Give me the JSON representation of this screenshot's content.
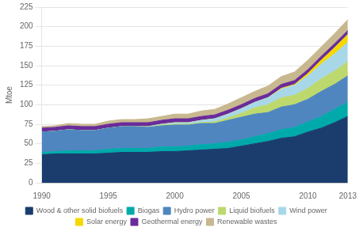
{
  "chart_data": {
    "type": "area",
    "stacked": true,
    "ylabel": "Mtoe",
    "x": [
      1990,
      1991,
      1992,
      1993,
      1994,
      1995,
      1996,
      1997,
      1998,
      1999,
      2000,
      2001,
      2002,
      2003,
      2004,
      2005,
      2006,
      2007,
      2008,
      2009,
      2010,
      2011,
      2012,
      2013
    ],
    "series": [
      {
        "name": "Wood & other solid biofuels",
        "color": "#1a3d6e",
        "values": [
          36,
          37,
          37,
          37,
          37,
          38,
          39,
          39,
          39,
          40,
          40,
          41,
          42,
          43,
          44,
          47,
          50,
          53,
          57,
          59,
          65,
          70,
          77,
          85
        ]
      },
      {
        "name": "Biogas",
        "color": "#00aaaa",
        "values": [
          3,
          3,
          4,
          4,
          4,
          5,
          5,
          5,
          5,
          6,
          6,
          6,
          7,
          7,
          8,
          8,
          9,
          10,
          11,
          12,
          13,
          15,
          17,
          18
        ]
      },
      {
        "name": "Hydro power",
        "color": "#4f86c0",
        "values": [
          26,
          26,
          27,
          26,
          26,
          27,
          28,
          28,
          27,
          27,
          28,
          27,
          27,
          26,
          28,
          29,
          29,
          27,
          29,
          29,
          29,
          32,
          32,
          34
        ]
      },
      {
        "name": "Liquid biofuels",
        "color": "#bdd96e",
        "values": [
          0,
          0,
          0,
          0,
          0,
          0,
          0,
          0,
          0,
          1,
          1,
          1,
          1,
          2,
          3,
          5,
          8,
          10,
          12,
          12,
          14,
          16,
          17,
          18
        ]
      },
      {
        "name": "Wind power",
        "color": "#a8d8e8",
        "values": [
          0,
          0,
          0,
          0,
          0,
          0,
          0,
          0,
          1,
          1,
          2,
          2,
          3,
          4,
          5,
          6,
          7,
          9,
          11,
          13,
          16,
          19,
          22,
          25
        ]
      },
      {
        "name": "Solar energy",
        "color": "#f5d800",
        "values": [
          0,
          0,
          0,
          0,
          0,
          0,
          0,
          0,
          0,
          0,
          0,
          0,
          0,
          0,
          0,
          0,
          0,
          0,
          1,
          1,
          3,
          5,
          8,
          10
        ]
      },
      {
        "name": "Geothermal energy",
        "color": "#6a2b9b",
        "values": [
          5,
          5,
          5,
          5,
          5,
          5,
          5,
          5,
          5,
          5,
          5,
          5,
          5,
          5,
          5,
          5,
          5,
          5,
          5,
          5,
          5,
          5,
          5,
          5
        ]
      },
      {
        "name": "Renewable wastes",
        "color": "#c8b890",
        "values": [
          2,
          2,
          3,
          3,
          3,
          4,
          4,
          4,
          5,
          5,
          6,
          6,
          7,
          7,
          8,
          9,
          9,
          10,
          10,
          11,
          12,
          12,
          13,
          14
        ]
      }
    ],
    "xlim": [
      1990,
      2013
    ],
    "xticks": [
      1990,
      1995,
      2000,
      2005,
      2010,
      2013
    ],
    "ylim": [
      0,
      225
    ],
    "yticks": [
      0,
      25,
      50,
      75,
      100,
      125,
      150,
      175,
      200,
      225
    ],
    "grid": true,
    "legend": "bottom"
  }
}
